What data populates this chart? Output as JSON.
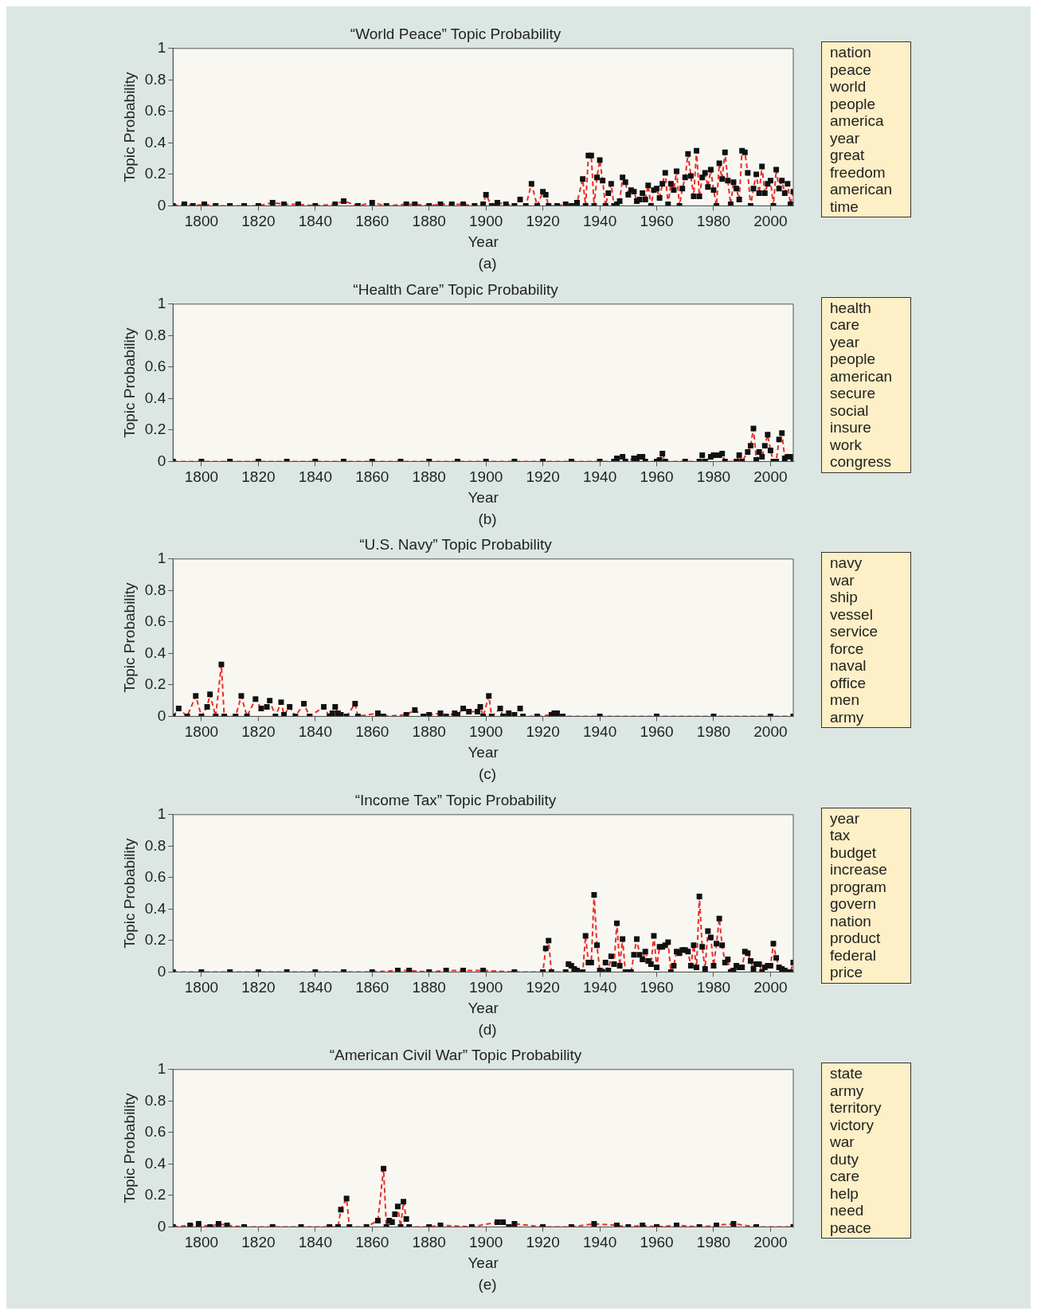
{
  "chart_data": [
    {
      "type": "line",
      "title": "“World Peace” Topic Probability",
      "xlabel": "Year",
      "ylabel": "Topic Probability",
      "xlim": [
        1790,
        2008
      ],
      "ylim": [
        0,
        1
      ],
      "xticks": [
        1800,
        1820,
        1840,
        1860,
        1880,
        1900,
        1920,
        1940,
        1960,
        1980,
        2000
      ],
      "yticks": [
        0,
        0.2,
        0.4,
        0.6,
        0.8,
        1
      ],
      "marker": "square",
      "line_style": "dashed",
      "legend": false,
      "annotations": [
        "nation",
        "peace",
        "world",
        "people",
        "america",
        "year",
        "great",
        "freedom",
        "american",
        "time",
        "(a)"
      ],
      "series": [
        {
          "color": "#ee2b24",
          "x": [
            1790,
            1794,
            1797,
            1801,
            1805,
            1810,
            1815,
            1820,
            1825,
            1829,
            1834,
            1840,
            1847,
            1850,
            1855,
            1860,
            1865,
            1872,
            1875,
            1880,
            1884,
            1888,
            1892,
            1896,
            1899,
            1900,
            1902,
            1904,
            1907,
            1910,
            1912,
            1914,
            1916,
            1918,
            1920,
            1921,
            1922,
            1925,
            1928,
            1930,
            1932,
            1934,
            1935,
            1936,
            1937,
            1938,
            1939,
            1940,
            1941,
            1942,
            1943,
            1944,
            1945,
            1946,
            1947,
            1948,
            1949,
            1950,
            1951,
            1952,
            1953,
            1954,
            1955,
            1956,
            1957,
            1958,
            1959,
            1960,
            1961,
            1962,
            1963,
            1964,
            1965,
            1966,
            1967,
            1968,
            1969,
            1970,
            1971,
            1972,
            1973,
            1974,
            1975,
            1976,
            1977,
            1978,
            1979,
            1980,
            1981,
            1982,
            1983,
            1984,
            1985,
            1986,
            1987,
            1988,
            1989,
            1990,
            1991,
            1992,
            1993,
            1994,
            1995,
            1996,
            1997,
            1998,
            1999,
            2000,
            2001,
            2002,
            2003,
            2004,
            2005,
            2006,
            2007,
            2008
          ],
          "values": [
            0,
            0.01,
            0,
            0.01,
            0,
            0,
            0,
            0,
            0.02,
            0.01,
            0.01,
            0,
            0.01,
            0.03,
            0,
            0.02,
            0,
            0.01,
            0.01,
            0,
            0.01,
            0.01,
            0.01,
            0,
            0.01,
            0.07,
            0,
            0.02,
            0.01,
            0,
            0.04,
            0,
            0.14,
            0,
            0.09,
            0.07,
            0,
            0,
            0.01,
            0,
            0.02,
            0.17,
            0,
            0.32,
            0.32,
            0,
            0.18,
            0.29,
            0.16,
            0,
            0.08,
            0.14,
            0,
            0.01,
            0.03,
            0.18,
            0.15,
            0.07,
            0.1,
            0.09,
            0.03,
            0.04,
            0.08,
            0.04,
            0.13,
            0,
            0.1,
            0.11,
            0.05,
            0.14,
            0.21,
            0.01,
            0.14,
            0.1,
            0.22,
            0,
            0.11,
            0.18,
            0.33,
            0.19,
            0.06,
            0.35,
            0.06,
            0.18,
            0.21,
            0.12,
            0.23,
            0.1,
            0,
            0.27,
            0.17,
            0.34,
            0.16,
            0.01,
            0.15,
            0.11,
            0.04,
            0.35,
            0.34,
            0.21,
            0,
            0.11,
            0.2,
            0.08,
            0.25,
            0.08,
            0.14,
            0.16,
            0,
            0.23,
            0.11,
            0.16,
            0.08,
            0.14,
            0.01,
            0.09
          ]
        }
      ]
    },
    {
      "type": "line",
      "title": "“Health Care” Topic Probability",
      "xlabel": "Year",
      "ylabel": "Topic Probability",
      "xlim": [
        1790,
        2008
      ],
      "ylim": [
        0,
        1
      ],
      "xticks": [
        1800,
        1820,
        1840,
        1860,
        1880,
        1900,
        1920,
        1940,
        1960,
        1980,
        2000
      ],
      "yticks": [
        0,
        0.2,
        0.4,
        0.6,
        0.8,
        1
      ],
      "marker": "square",
      "line_style": "dashed",
      "legend": false,
      "annotations": [
        "health",
        "care",
        "year",
        "people",
        "american",
        "secure",
        "social",
        "insure",
        "work",
        "congress",
        "(b)"
      ],
      "series": [
        {
          "color": "#ee2b24",
          "x": [
            1790,
            1800,
            1810,
            1820,
            1830,
            1840,
            1850,
            1860,
            1870,
            1880,
            1890,
            1900,
            1910,
            1920,
            1930,
            1940,
            1945,
            1946,
            1948,
            1949,
            1952,
            1953,
            1954,
            1955,
            1956,
            1960,
            1961,
            1962,
            1963,
            1970,
            1975,
            1976,
            1977,
            1979,
            1980,
            1981,
            1982,
            1983,
            1984,
            1988,
            1989,
            1990,
            1992,
            1993,
            1994,
            1995,
            1996,
            1997,
            1998,
            1999,
            2000,
            2001,
            2002,
            2003,
            2004,
            2005,
            2006,
            2007,
            2008
          ],
          "values": [
            0,
            0,
            0,
            0,
            0,
            0,
            0,
            0,
            0,
            0,
            0,
            0,
            0,
            0,
            0,
            0,
            0,
            0.02,
            0.03,
            0,
            0.02,
            0.02,
            0.03,
            0.03,
            0,
            0,
            0.01,
            0.05,
            0,
            0,
            0,
            0.04,
            0,
            0.03,
            0.04,
            0.04,
            0.04,
            0.05,
            0,
            0,
            0.04,
            0,
            0.06,
            0.1,
            0.21,
            0.01,
            0.06,
            0.03,
            0.1,
            0.17,
            0.07,
            0,
            0,
            0.14,
            0.18,
            0.02,
            0.03,
            0.03,
            0
          ]
        }
      ]
    },
    {
      "type": "line",
      "title": "“U.S. Navy” Topic Probability",
      "xlabel": "Year",
      "ylabel": "Topic Probability",
      "xlim": [
        1790,
        2008
      ],
      "ylim": [
        0,
        1
      ],
      "xticks": [
        1800,
        1820,
        1840,
        1860,
        1880,
        1900,
        1920,
        1940,
        1960,
        1980,
        2000
      ],
      "yticks": [
        0,
        0.2,
        0.4,
        0.6,
        0.8,
        1
      ],
      "marker": "square",
      "line_style": "dashed",
      "legend": false,
      "annotations": [
        "navy",
        "war",
        "ship",
        "vessel",
        "service",
        "force",
        "naval",
        "office",
        "men",
        "army",
        "(c)"
      ],
      "series": [
        {
          "color": "#ee2b24",
          "x": [
            1790,
            1792,
            1795,
            1798,
            1800,
            1802,
            1803,
            1805,
            1807,
            1808,
            1812,
            1814,
            1816,
            1819,
            1821,
            1823,
            1824,
            1826,
            1828,
            1829,
            1831,
            1833,
            1836,
            1838,
            1843,
            1845,
            1846,
            1847,
            1848,
            1849,
            1851,
            1854,
            1855,
            1862,
            1864,
            1872,
            1875,
            1878,
            1880,
            1884,
            1886,
            1889,
            1890,
            1892,
            1894,
            1897,
            1898,
            1899,
            1901,
            1902,
            1905,
            1906,
            1908,
            1910,
            1912,
            1913,
            1918,
            1923,
            1924,
            1925,
            1927,
            1940,
            1960,
            1980,
            2000,
            2008
          ],
          "values": [
            0,
            0.05,
            0,
            0.13,
            0,
            0.06,
            0.14,
            0,
            0.33,
            0,
            0,
            0.13,
            0,
            0.11,
            0.05,
            0.06,
            0.1,
            0,
            0.09,
            0.01,
            0.06,
            0,
            0.08,
            0,
            0.06,
            0,
            0.02,
            0.06,
            0.02,
            0.01,
            0,
            0.08,
            0,
            0.02,
            0,
            0.01,
            0.04,
            0,
            0.01,
            0.02,
            0,
            0.02,
            0.01,
            0.05,
            0.03,
            0.03,
            0.06,
            0,
            0.13,
            0,
            0.05,
            0,
            0.02,
            0.01,
            0.05,
            0,
            0,
            0.01,
            0.02,
            0.02,
            0,
            0,
            0,
            0,
            0,
            0
          ]
        }
      ]
    },
    {
      "type": "line",
      "title": "“Income Tax” Topic Probability",
      "xlabel": "Year",
      "ylabel": "Topic Probability",
      "xlim": [
        1790,
        2008
      ],
      "ylim": [
        0,
        1
      ],
      "xticks": [
        1800,
        1820,
        1840,
        1860,
        1880,
        1900,
        1920,
        1940,
        1960,
        1980,
        2000
      ],
      "yticks": [
        0,
        0.2,
        0.4,
        0.6,
        0.8,
        1
      ],
      "marker": "square",
      "line_style": "dashed",
      "legend": false,
      "annotations": [
        "year",
        "tax",
        "budget",
        "increase",
        "program",
        "govern",
        "nation",
        "product",
        "federal",
        "price",
        "(d)"
      ],
      "series": [
        {
          "color": "#ee2b24",
          "x": [
            1790,
            1800,
            1810,
            1820,
            1830,
            1840,
            1850,
            1860,
            1869,
            1873,
            1880,
            1886,
            1892,
            1899,
            1910,
            1920,
            1921,
            1922,
            1923,
            1928,
            1929,
            1930,
            1931,
            1932,
            1934,
            1935,
            1936,
            1937,
            1938,
            1939,
            1940,
            1941,
            1942,
            1943,
            1944,
            1945,
            1946,
            1947,
            1948,
            1949,
            1950,
            1951,
            1952,
            1953,
            1954,
            1955,
            1956,
            1957,
            1958,
            1959,
            1960,
            1961,
            1962,
            1963,
            1964,
            1965,
            1966,
            1967,
            1968,
            1969,
            1970,
            1971,
            1972,
            1973,
            1974,
            1975,
            1976,
            1977,
            1978,
            1979,
            1980,
            1981,
            1982,
            1983,
            1984,
            1985,
            1986,
            1987,
            1988,
            1989,
            1990,
            1991,
            1992,
            1993,
            1994,
            1995,
            1996,
            1997,
            1998,
            1999,
            2000,
            2001,
            2002,
            2003,
            2004,
            2005,
            2006,
            2007,
            2008
          ],
          "values": [
            0,
            0,
            0,
            0,
            0,
            0,
            0,
            0,
            0.01,
            0.01,
            0,
            0.01,
            0.01,
            0.01,
            0,
            0,
            0.15,
            0.2,
            0,
            0,
            0.05,
            0.04,
            0.02,
            0.01,
            0,
            0.23,
            0.06,
            0.06,
            0.49,
            0.17,
            0.01,
            0,
            0.06,
            0.01,
            0.1,
            0.05,
            0.31,
            0.04,
            0.21,
            0,
            0,
            0,
            0.11,
            0.21,
            0.11,
            0.08,
            0.13,
            0.07,
            0.05,
            0.23,
            0.03,
            0.16,
            0.16,
            0.17,
            0.19,
            0,
            0.04,
            0.13,
            0.12,
            0.14,
            0.14,
            0.13,
            0.04,
            0.17,
            0.03,
            0.48,
            0.16,
            0.02,
            0.26,
            0.22,
            0.04,
            0.18,
            0.34,
            0.17,
            0.06,
            0.08,
            0,
            0.01,
            0.04,
            0.03,
            0.03,
            0.13,
            0.12,
            0.07,
            0.02,
            0.05,
            0.05,
            0,
            0.03,
            0.04,
            0.04,
            0.18,
            0.09,
            0.03,
            0.02,
            0.01,
            0,
            0,
            0.06
          ]
        }
      ]
    },
    {
      "type": "line",
      "title": "“American Civil War” Topic Probability",
      "xlabel": "Year",
      "ylabel": "Topic Probability",
      "xlim": [
        1790,
        2008
      ],
      "ylim": [
        0,
        1
      ],
      "xticks": [
        1800,
        1820,
        1840,
        1860,
        1880,
        1900,
        1920,
        1940,
        1960,
        1980,
        2000
      ],
      "yticks": [
        0,
        0.2,
        0.4,
        0.6,
        0.8,
        1
      ],
      "marker": "square",
      "line_style": "dashed",
      "legend": false,
      "annotations": [
        "state",
        "army",
        "territory",
        "victory",
        "war",
        "duty",
        "care",
        "help",
        "need",
        "peace",
        "(e)"
      ],
      "series": [
        {
          "color": "#ee2b24",
          "x": [
            1790,
            1796,
            1799,
            1803,
            1806,
            1809,
            1815,
            1825,
            1835,
            1845,
            1848,
            1849,
            1851,
            1852,
            1858,
            1862,
            1864,
            1865,
            1866,
            1867,
            1868,
            1869,
            1870,
            1871,
            1872,
            1873,
            1880,
            1884,
            1895,
            1904,
            1906,
            1908,
            1910,
            1920,
            1930,
            1938,
            1946,
            1950,
            1955,
            1960,
            1967,
            1975,
            1981,
            1987,
            1995,
            2008
          ],
          "values": [
            0,
            0.01,
            0.02,
            0,
            0.02,
            0.01,
            0,
            0,
            0,
            0,
            0,
            0.11,
            0.18,
            0,
            0,
            0.04,
            0.37,
            0,
            0.04,
            0.03,
            0.08,
            0.13,
            0,
            0.16,
            0.05,
            0,
            0,
            0.01,
            0,
            0.03,
            0.03,
            0,
            0.02,
            0,
            0,
            0.02,
            0.01,
            0,
            0.01,
            0,
            0.01,
            0,
            0.01,
            0.02,
            0,
            0
          ]
        }
      ]
    }
  ]
}
